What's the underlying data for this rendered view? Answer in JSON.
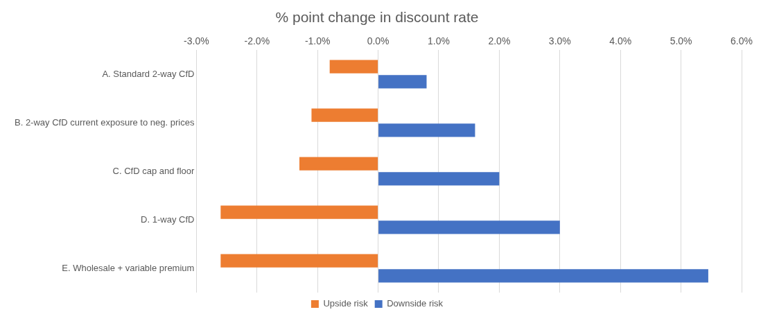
{
  "chart_data": {
    "type": "bar",
    "orientation": "horizontal",
    "title": "% point change in discount rate",
    "categories": [
      "A. Standard 2-way CfD",
      "B. 2-way CfD current exposure to neg. prices",
      "C. CfD cap and floor",
      "D. 1-way CfD",
      "E. Wholesale + variable premium"
    ],
    "series": [
      {
        "name": "Upside risk",
        "color": "#ed7d31",
        "values": [
          -0.8,
          -1.1,
          -1.3,
          -2.6,
          -2.6
        ]
      },
      {
        "name": "Downside risk",
        "color": "#4472c4",
        "values": [
          0.8,
          1.6,
          2.0,
          3.0,
          5.45
        ]
      }
    ],
    "xlim": [
      -3,
      6
    ],
    "xticks": [
      {
        "value": -3,
        "label": "-3.0%"
      },
      {
        "value": -2,
        "label": "-2.0%"
      },
      {
        "value": -1,
        "label": "-1.0%"
      },
      {
        "value": 0,
        "label": "0.0%"
      },
      {
        "value": 1,
        "label": "1.0%"
      },
      {
        "value": 2,
        "label": "2.0%"
      },
      {
        "value": 3,
        "label": "3.0%"
      },
      {
        "value": 4,
        "label": "4.0%"
      },
      {
        "value": 5,
        "label": "5.0%"
      },
      {
        "value": 6,
        "label": "6.0%"
      }
    ],
    "grid": "x",
    "legend": "bottom"
  }
}
